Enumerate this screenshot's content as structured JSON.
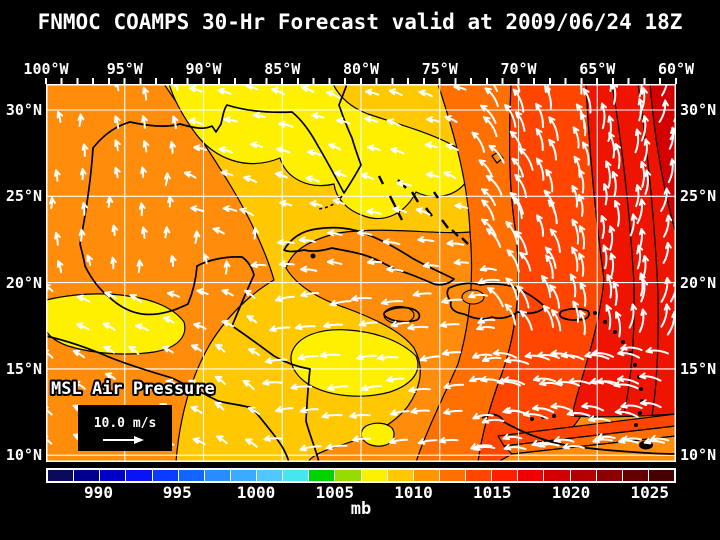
{
  "title": "FNMOC COAMPS 30-Hr Forecast valid at 2009/06/24 18Z",
  "axes": {
    "top_labels": [
      "100°W",
      "95°W",
      "90°W",
      "85°W",
      "80°W",
      "75°W",
      "70°W",
      "65°W",
      "60°W"
    ],
    "left_labels": [
      "30°N",
      "25°N",
      "20°N",
      "15°N",
      "10°N"
    ],
    "right_labels": [
      "30°N",
      "25°N",
      "20°N",
      "15°N",
      "10°N"
    ]
  },
  "map": {
    "overlay_label": "MSL Air Pressure",
    "wind_legend_speed": "10.0 m/s",
    "colors": {
      "orange": "#FF8C0A",
      "amber": "#FFC800",
      "yellow": "#FFF000",
      "dark_orange": "#FF7000",
      "orange_red": "#FF4500",
      "red": "#EE1400",
      "deep_red": "#D20000",
      "grid": "#FFFFFF",
      "coast": "#000000",
      "wind": "#FFFFFF",
      "border": "#FFFFFF"
    }
  },
  "colorbar": {
    "units_label": "mb",
    "tick_labels": [
      "990",
      "995",
      "1000",
      "1005",
      "1010",
      "1015",
      "1020",
      "1025"
    ],
    "cell_colors": [
      "#0A0A5A",
      "#00008F",
      "#0000C8",
      "#0814F5",
      "#0A3CFF",
      "#1464FF",
      "#288CFF",
      "#3CAAFF",
      "#50C8FF",
      "#46E6F0",
      "#00D200",
      "#96DC00",
      "#FFF000",
      "#FFC800",
      "#FF9600",
      "#FF7000",
      "#FF4500",
      "#FF1E00",
      "#F00000",
      "#D20000",
      "#B40000",
      "#8C0000",
      "#640000",
      "#460000"
    ]
  }
}
